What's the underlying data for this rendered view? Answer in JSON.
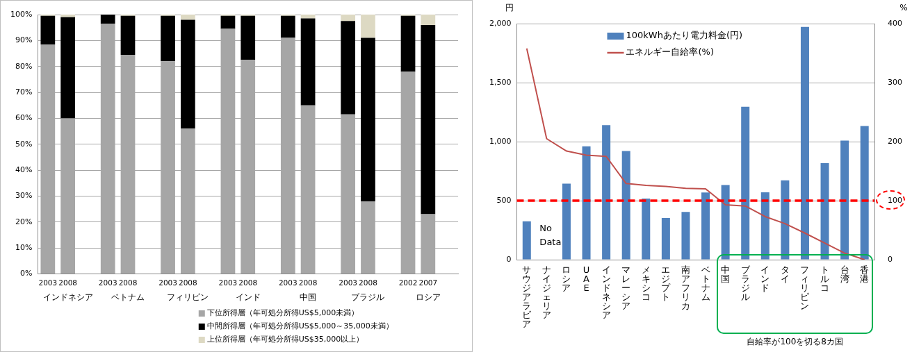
{
  "chart_data": [
    {
      "type": "bar",
      "stacked": true,
      "categories": [
        "2003",
        "2008",
        null,
        "2003",
        "2008",
        null,
        "2003",
        "2008",
        null,
        "2003",
        "2008",
        null,
        "2003",
        "2008",
        null,
        "2003",
        "2008",
        null,
        "2002",
        "2007",
        null
      ],
      "series": [
        {
          "name": "下位所得層（年可処分所得US$5,000未満）",
          "color": "#a6a6a6",
          "values": [
            88.5,
            60,
            null,
            96.5,
            84.5,
            null,
            82,
            56,
            null,
            94.5,
            82.5,
            null,
            91,
            65,
            null,
            61.5,
            28,
            null,
            78,
            23,
            null
          ]
        },
        {
          "name": "中間所得層（年可処分所得US$5,000～35,000未満）",
          "color": "#000000",
          "values": [
            11,
            39,
            null,
            3.5,
            15,
            null,
            17.5,
            42,
            null,
            5,
            17,
            null,
            8.5,
            33.5,
            null,
            36,
            63,
            null,
            21.5,
            73,
            null
          ]
        },
        {
          "name": "上位所得層（年可処分所得US$35,000以上）",
          "color": "#ddd9c3",
          "values": [
            0.5,
            1,
            null,
            0,
            0.5,
            null,
            0.5,
            2,
            null,
            0.5,
            0.5,
            null,
            0.5,
            1.5,
            null,
            2.5,
            9,
            null,
            0.5,
            4,
            null
          ]
        }
      ],
      "ylim": [
        0,
        100
      ],
      "yticks": [
        {
          "value": 0,
          "label": "0%"
        },
        {
          "value": 10,
          "label": "10%"
        },
        {
          "value": 20,
          "label": "20%"
        },
        {
          "value": 30,
          "label": "30%"
        },
        {
          "value": 40,
          "label": "40%"
        },
        {
          "value": 50,
          "label": "50%"
        },
        {
          "value": 60,
          "label": "60%"
        },
        {
          "value": 70,
          "label": "70%"
        },
        {
          "value": 80,
          "label": "80%"
        },
        {
          "value": 90,
          "label": "90%"
        },
        {
          "value": 100,
          "label": "100%"
        }
      ],
      "annotations": [
        "インドネシア",
        "ベトナム",
        "フィリピン",
        "インド",
        "中国",
        "ブラジル",
        "ロシア"
      ],
      "grid": "y",
      "legend": "bottom"
    },
    {
      "type": "bar",
      "categories": [
        "サウジアラビア",
        "ナイジェリア",
        "ロシア",
        "UAE",
        "インドネシア",
        "マレーシア",
        "メキシコ",
        "エジプト",
        "南アフリカ",
        "ベトナム",
        "中国",
        "ブラジル",
        "インド",
        "タイ",
        "フィリピン",
        "トルコ",
        "台湾",
        "香港"
      ],
      "series": [
        {
          "name": "100kWhあたり電力料金(円)",
          "type": "bar",
          "color": "#4f81bd",
          "values": [
            325,
            null,
            644,
            960,
            1139,
            920,
            518,
            353,
            404,
            569,
            632,
            1296,
            571,
            672,
            1972,
            818,
            1009,
            1133
          ]
        },
        {
          "name": "エネルギー自給率(%)",
          "type": "line",
          "axis": "y2",
          "color": "#c0504d",
          "values": [
            358,
            205,
            184,
            177,
            175,
            129,
            126,
            124,
            121,
            120,
            93,
            91,
            73,
            61,
            45,
            28,
            11,
            0
          ]
        }
      ],
      "ylabel": "円",
      "y2label": "%",
      "ylim": [
        0,
        2000
      ],
      "yticks": [
        0,
        500,
        {
          "value": 1000,
          "label": "1,000"
        },
        {
          "value": 1500,
          "label": "1,500"
        },
        {
          "value": 2000,
          "label": "2,000"
        }
      ],
      "y2lim": [
        0,
        400
      ],
      "y2ticks": [
        0,
        100,
        200,
        300,
        400
      ],
      "ref_lines": [
        {
          "axis": "y2",
          "value": 100,
          "color": "#ff0000",
          "line_style": "dashed"
        }
      ],
      "annotations": [
        "No Data",
        "自給率が100を切る8カ国"
      ],
      "grid": "y",
      "legend": "top left"
    }
  ]
}
